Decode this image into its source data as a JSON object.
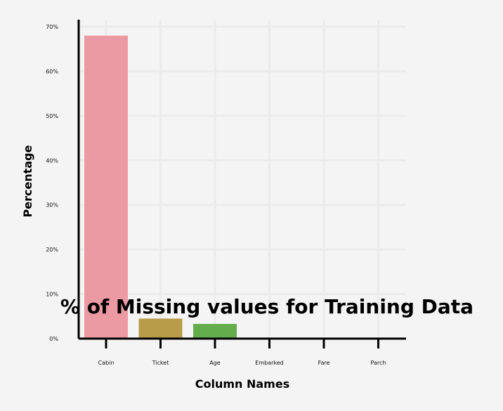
{
  "chart_data": {
    "type": "bar",
    "title": "% of Missing values for Training Data",
    "xlabel": "Column Names",
    "ylabel": "Percentage",
    "categories": [
      "Cabin",
      "Ticket",
      "Age",
      "Embarked",
      "Fare",
      "Parch"
    ],
    "values": [
      68,
      4.5,
      3.3,
      0,
      0,
      0
    ],
    "ylim": [
      0,
      70
    ],
    "yticks": [
      "0%",
      "10%",
      "20%",
      "30%",
      "40%",
      "50%",
      "60%",
      "70%"
    ],
    "grid": true,
    "colors": [
      "#eb99a3",
      "#b89c4a",
      "#63ad4c",
      "#5bb39a",
      "#5aa9d4",
      "#c49bd9"
    ],
    "background": "#f4f4f4",
    "grid_color": "#ebebeb"
  }
}
